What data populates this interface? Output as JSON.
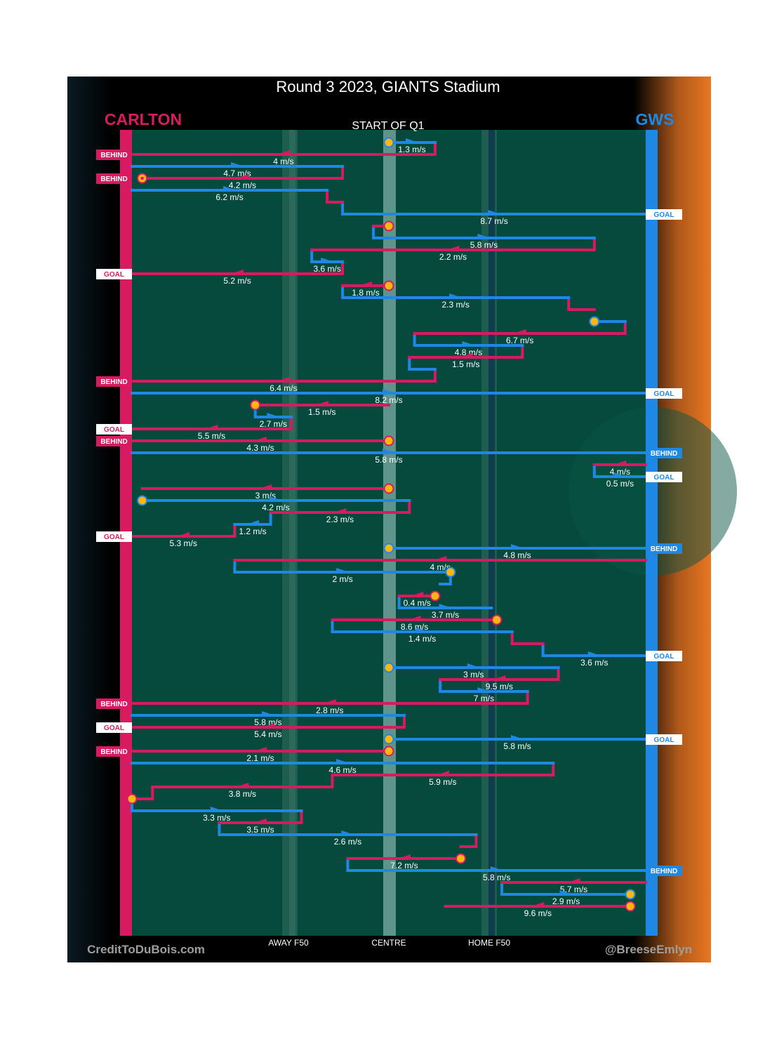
{
  "title": "Round 3 2023, GIANTS Stadium",
  "subtitle": "START OF Q1",
  "teams": {
    "left": {
      "name": "CARLTON",
      "color": "#d81b60"
    },
    "right": {
      "name": "GWS",
      "color": "#1e88e5"
    }
  },
  "colors": {
    "field": "#054a3d",
    "ball": "#f9b710",
    "background": "#000000",
    "gradient_right": "#e87722"
  },
  "x_axis": {
    "ticks": [
      "AWAY F50",
      "CENTRE",
      "HOME F50"
    ]
  },
  "credits": {
    "left": "CreditToDuBois.com",
    "right": "@BreeseEmlyn"
  },
  "chart_data": {
    "type": "line",
    "description": "Ball movement chains, Q1. x: field position 0 (Carlton end) to 100 (GWS end); row: chain sequence order; speed in m/s.",
    "x_range": [
      0,
      100
    ],
    "segments": [
      {
        "row": 0,
        "team": "GWS",
        "x": [
          50,
          59
        ],
        "speed": "1.3 m/s",
        "dir": "right",
        "start_ball": true
      },
      {
        "row": 1,
        "team": "CARLTON",
        "x": [
          59,
          0
        ],
        "speed": "4 m/s",
        "dir": "left",
        "end": "BEHIND"
      },
      {
        "row": 2,
        "team": "GWS",
        "x": [
          0,
          41
        ],
        "speed": "4.7 m/s",
        "dir": "right"
      },
      {
        "row": 3,
        "team": "CARLTON",
        "x": [
          41,
          2
        ],
        "speed": "4.2 m/s",
        "dir": "left",
        "end_ball": true
      },
      {
        "row": 3,
        "team": "CARLTON",
        "x": [
          2,
          2
        ],
        "speed": "",
        "dir": "none",
        "end": "BEHIND"
      },
      {
        "row": 4,
        "team": "GWS",
        "x": [
          0,
          38
        ],
        "speed": "6.2 m/s",
        "dir": "right"
      },
      {
        "row": 5,
        "team": "CARLTON",
        "x": [
          38,
          41
        ],
        "speed": "",
        "dir": "none"
      },
      {
        "row": 6,
        "team": "GWS",
        "x": [
          41,
          100
        ],
        "speed": "8.7 m/s",
        "dir": "right",
        "end": "GOAL"
      },
      {
        "row": 7,
        "team": "CARLTON",
        "x": [
          50,
          47
        ],
        "speed": "",
        "dir": "none",
        "start_ball": true
      },
      {
        "row": 8,
        "team": "GWS",
        "x": [
          47,
          90
        ],
        "speed": "5.8 m/s",
        "dir": "right"
      },
      {
        "row": 9,
        "team": "CARLTON",
        "x": [
          90,
          35
        ],
        "speed": "2.2 m/s",
        "dir": "left"
      },
      {
        "row": 10,
        "team": "GWS",
        "x": [
          35,
          41
        ],
        "speed": "3.6 m/s",
        "dir": "right"
      },
      {
        "row": 11,
        "team": "CARLTON",
        "x": [
          41,
          0
        ],
        "speed": "5.2 m/s",
        "dir": "left",
        "end": "GOAL"
      },
      {
        "row": 12,
        "team": "CARLTON",
        "x": [
          50,
          41
        ],
        "speed": "1.8 m/s",
        "dir": "left",
        "start_ball": true
      },
      {
        "row": 13,
        "team": "GWS",
        "x": [
          41,
          85
        ],
        "speed": "2.3 m/s",
        "dir": "right"
      },
      {
        "row": 14,
        "team": "CARLTON",
        "x": [
          85,
          90
        ],
        "speed": "",
        "dir": "none"
      },
      {
        "row": 15,
        "team": "GWS",
        "x": [
          90,
          96
        ],
        "speed": "",
        "dir": "none",
        "start_ball": true
      },
      {
        "row": 16,
        "team": "CARLTON",
        "x": [
          96,
          55
        ],
        "speed": "6.7 m/s",
        "dir": "left"
      },
      {
        "row": 17,
        "team": "GWS",
        "x": [
          55,
          76
        ],
        "speed": "4.8 m/s",
        "dir": "right"
      },
      {
        "row": 18,
        "team": "CARLTON",
        "x": [
          76,
          54
        ],
        "speed": "1.5 m/s",
        "dir": "left"
      },
      {
        "row": 19,
        "team": "GWS",
        "x": [
          54,
          59
        ],
        "speed": "",
        "dir": "none"
      },
      {
        "row": 20,
        "team": "CARLTON",
        "x": [
          59,
          0
        ],
        "speed": "6.4 m/s",
        "dir": "left",
        "end": "BEHIND"
      },
      {
        "row": 21,
        "team": "GWS",
        "x": [
          0,
          100
        ],
        "speed": "8.2 m/s",
        "dir": "right",
        "end": "GOAL"
      },
      {
        "row": 22,
        "team": "CARLTON",
        "x": [
          50,
          24
        ],
        "speed": "1.5 m/s",
        "dir": "left",
        "end_ball": true
      },
      {
        "row": 23,
        "team": "GWS",
        "x": [
          24,
          31
        ],
        "speed": "2.7 m/s",
        "dir": "right"
      },
      {
        "row": 24,
        "team": "CARLTON",
        "x": [
          31,
          0
        ],
        "speed": "5.5 m/s",
        "dir": "left",
        "end": "GOAL"
      },
      {
        "row": 25,
        "team": "CARLTON",
        "x": [
          50,
          0
        ],
        "speed": "4.3 m/s",
        "dir": "left",
        "start_ball": true,
        "end": "BEHIND"
      },
      {
        "row": 26,
        "team": "GWS",
        "x": [
          0,
          100
        ],
        "speed": "5.8 m/s",
        "dir": "right",
        "end": "BEHIND"
      },
      {
        "row": 27,
        "team": "CARLTON",
        "x": [
          100,
          90
        ],
        "speed": "4 m/s",
        "dir": "left"
      },
      {
        "row": 28,
        "team": "GWS",
        "x": [
          90,
          100
        ],
        "speed": "0.5 m/s",
        "dir": "right",
        "end": "GOAL"
      },
      {
        "row": 29,
        "team": "CARLTON",
        "x": [
          50,
          2
        ],
        "speed": "3 m/s",
        "dir": "left",
        "start_ball": true
      },
      {
        "row": 30,
        "team": "GWS",
        "x": [
          2,
          54
        ],
        "speed": "4.2 m/s",
        "dir": "right",
        "start_ball": true
      },
      {
        "row": 31,
        "team": "CARLTON",
        "x": [
          54,
          27
        ],
        "speed": "2.3 m/s",
        "dir": "left"
      },
      {
        "row": 32,
        "team": "GWS",
        "x": [
          27,
          20
        ],
        "speed": "1.2 m/s",
        "dir": "left"
      },
      {
        "row": 33,
        "team": "CARLTON",
        "x": [
          20,
          0
        ],
        "speed": "5.3 m/s",
        "dir": "left",
        "end": "GOAL"
      },
      {
        "row": 34,
        "team": "GWS",
        "x": [
          50,
          100
        ],
        "speed": "4.8 m/s",
        "dir": "right",
        "start_ball": true,
        "end": "BEHIND"
      },
      {
        "row": 35,
        "team": "CARLTON",
        "x": [
          100,
          20
        ],
        "speed": "4 m/s",
        "dir": "left"
      },
      {
        "row": 36,
        "team": "GWS",
        "x": [
          20,
          62
        ],
        "speed": "2 m/s",
        "dir": "right",
        "end_ball": true
      },
      {
        "row": 37,
        "team": "GWS",
        "x": [
          62,
          60
        ],
        "speed": "",
        "dir": "none"
      },
      {
        "row": 38,
        "team": "CARLTON",
        "x": [
          59,
          52
        ],
        "speed": "0.4 m/s",
        "dir": "left",
        "start_ball": true
      },
      {
        "row": 39,
        "team": "GWS",
        "x": [
          52,
          70
        ],
        "speed": "3.7 m/s",
        "dir": "right"
      },
      {
        "row": 40,
        "team": "CARLTON",
        "x": [
          71,
          39
        ],
        "speed": "8.6 m/s",
        "dir": "left",
        "start_ball": true
      },
      {
        "row": 41,
        "team": "GWS",
        "x": [
          39,
          74
        ],
        "speed": "1.4 m/s",
        "dir": "right"
      },
      {
        "row": 42,
        "team": "CARLTON",
        "x": [
          74,
          80
        ],
        "speed": "",
        "dir": "none"
      },
      {
        "row": 43,
        "team": "GWS",
        "x": [
          80,
          100
        ],
        "speed": "3.6 m/s",
        "dir": "right",
        "end": "GOAL"
      },
      {
        "row": 44,
        "team": "GWS",
        "x": [
          50,
          83
        ],
        "speed": "3 m/s",
        "dir": "right",
        "start_ball": true
      },
      {
        "row": 45,
        "team": "CARLTON",
        "x": [
          83,
          60
        ],
        "speed": "9.5 m/s",
        "dir": "left"
      },
      {
        "row": 46,
        "team": "GWS",
        "x": [
          60,
          77
        ],
        "speed": "7 m/s",
        "dir": "right"
      },
      {
        "row": 47,
        "team": "CARLTON",
        "x": [
          77,
          0
        ],
        "speed": "2.8 m/s",
        "dir": "left",
        "end": "BEHIND"
      },
      {
        "row": 48,
        "team": "GWS",
        "x": [
          0,
          53
        ],
        "speed": "5.8 m/s",
        "dir": "right"
      },
      {
        "row": 49,
        "team": "CARLTON",
        "x": [
          53,
          0
        ],
        "speed": "5.4 m/s",
        "dir": "left",
        "end": "GOAL"
      },
      {
        "row": 50,
        "team": "GWS",
        "x": [
          50,
          100
        ],
        "speed": "5.8 m/s",
        "dir": "right",
        "start_ball": true,
        "end": "GOAL"
      },
      {
        "row": 51,
        "team": "CARLTON",
        "x": [
          50,
          0
        ],
        "speed": "2.1 m/s",
        "dir": "left",
        "start_ball": true,
        "end": "BEHIND"
      },
      {
        "row": 52,
        "team": "GWS",
        "x": [
          0,
          82
        ],
        "speed": "4.6 m/s",
        "dir": "right"
      },
      {
        "row": 53,
        "team": "CARLTON",
        "x": [
          82,
          39
        ],
        "speed": "5.9 m/s",
        "dir": "left"
      },
      {
        "row": 54,
        "team": "CARLTON",
        "x": [
          39,
          4
        ],
        "speed": "3.8 m/s",
        "dir": "left"
      },
      {
        "row": 55,
        "team": "CARLTON",
        "x": [
          4,
          0
        ],
        "speed": "",
        "dir": "none",
        "end_ball": true
      },
      {
        "row": 56,
        "team": "GWS",
        "x": [
          0,
          33
        ],
        "speed": "3.3 m/s",
        "dir": "right"
      },
      {
        "row": 57,
        "team": "CARLTON",
        "x": [
          33,
          17
        ],
        "speed": "3.5 m/s",
        "dir": "left"
      },
      {
        "row": 58,
        "team": "GWS",
        "x": [
          17,
          67
        ],
        "speed": "2.6 m/s",
        "dir": "right"
      },
      {
        "row": 59,
        "team": "CARLTON",
        "x": [
          67,
          64
        ],
        "speed": "",
        "dir": "none"
      },
      {
        "row": 60,
        "team": "CARLTON",
        "x": [
          64,
          42
        ],
        "speed": "7.2 m/s",
        "dir": "left",
        "start_ball": true
      },
      {
        "row": 61,
        "team": "GWS",
        "x": [
          42,
          100
        ],
        "speed": "5.8 m/s",
        "dir": "right",
        "end": "BEHIND"
      },
      {
        "row": 62,
        "team": "CARLTON",
        "x": [
          100,
          72
        ],
        "speed": "5.7 m/s",
        "dir": "left"
      },
      {
        "row": 63,
        "team": "GWS",
        "x": [
          72,
          97
        ],
        "speed": "2.9 m/s",
        "dir": "right",
        "end_ball": true
      },
      {
        "row": 64,
        "team": "CARLTON",
        "x": [
          97,
          61
        ],
        "speed": "9.6 m/s",
        "dir": "left",
        "start_ball": true
      }
    ]
  }
}
